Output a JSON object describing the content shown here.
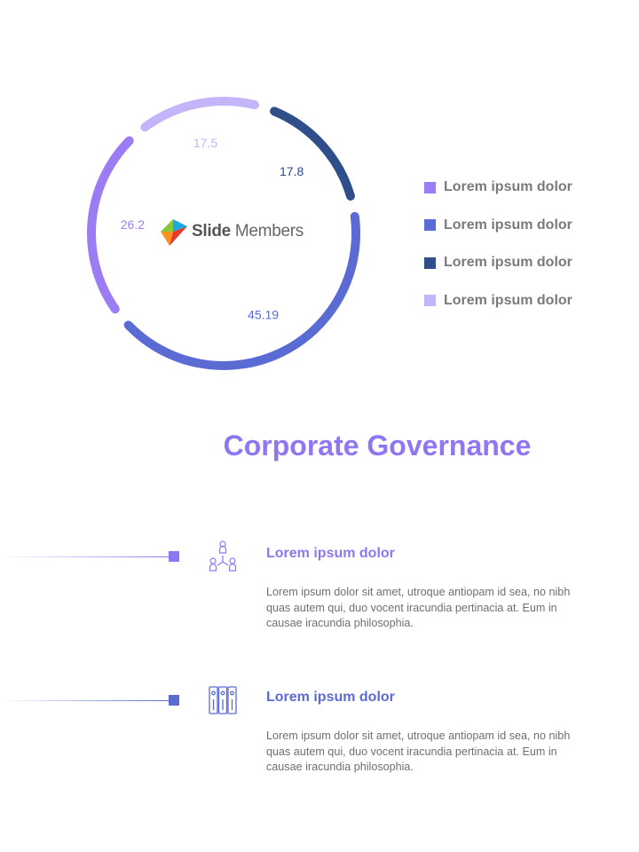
{
  "chart_data": {
    "type": "pie",
    "style": "donut",
    "values": [
      17.5,
      17.8,
      45.19,
      26.2
    ],
    "value_labels": [
      "17.5",
      "17.8",
      "45.19",
      "26.2"
    ],
    "colors": [
      "#c4b4fa",
      "#2f4e8a",
      "#5b6bd4",
      "#9b7cf5"
    ],
    "label_colors": [
      "#c4b4fa",
      "#2f4e8a",
      "#5b6bd4",
      "#9b7cf5"
    ],
    "legend": [
      {
        "label": "Lorem ipsum dolor",
        "color": "#9b7cf5"
      },
      {
        "label": "Lorem ipsum dolor",
        "color": "#5b6bd4"
      },
      {
        "label": "Lorem ipsum dolor",
        "color": "#2f4e8a"
      },
      {
        "label": "Lorem ipsum dolor",
        "color": "#c4b4fa"
      }
    ],
    "legend_position": "right"
  },
  "logo": {
    "bold": "Slide",
    "rest": "Members"
  },
  "title": "Corporate Governance",
  "items": [
    {
      "heading": "Lorem ipsum dolor",
      "body": "Lorem ipsum dolor sit amet, utroque antiopam id sea, no nibh quas autem qui, duo vocent iracundia pertinacia at. Eum in causae iracundia philosophia.",
      "color": "#8f76f2",
      "icon": "people-network-icon"
    },
    {
      "heading": "Lorem ipsum dolor",
      "body": "Lorem ipsum dolor sit amet, utroque antiopam id sea, no nibh quas autem qui, duo vocent iracundia pertinacia at. Eum in causae iracundia philosophia.",
      "color": "#5b6bd4",
      "icon": "binders-icon"
    }
  ]
}
